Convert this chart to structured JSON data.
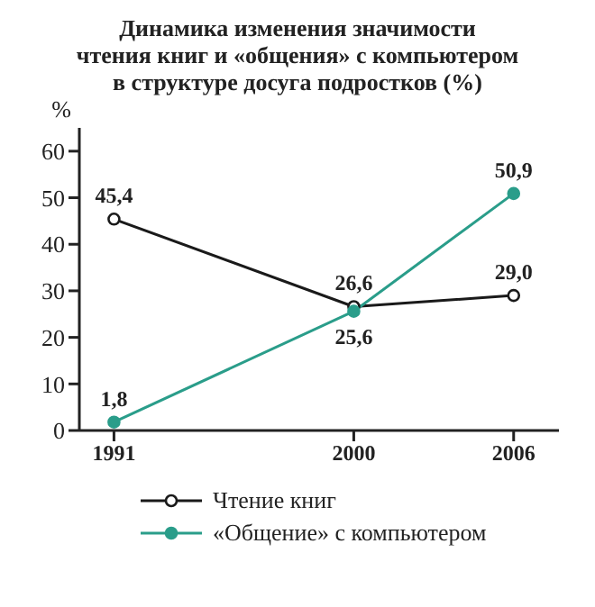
{
  "chart_data": {
    "type": "line",
    "title": "Динамика изменения значимости\nчтения книг и «общения» с компьютером\nв структуре досуга подростков (%)",
    "ylabel": "%",
    "x": [
      1991,
      2000,
      2006
    ],
    "xlim": [
      1989.7,
      2007.7
    ],
    "xticks": [
      1991,
      2000,
      2006
    ],
    "ylim": [
      0,
      65
    ],
    "yticks": [
      0,
      10,
      20,
      30,
      40,
      50,
      60
    ],
    "grid": false,
    "legend": "bottom",
    "marker": "circle",
    "line_style": "solid",
    "series": [
      {
        "name": "Чтение книг",
        "color": "#1a1a1a",
        "values": [
          45.4,
          26.6,
          29.0
        ],
        "value_labels": [
          "45,4",
          "26,6",
          "29,0"
        ]
      },
      {
        "name": "«Общение» с компьютером",
        "color": "#2a9d8a",
        "values": [
          1.8,
          25.6,
          50.9
        ],
        "value_labels": [
          "1,8",
          "25,6",
          "50,9"
        ]
      }
    ]
  }
}
